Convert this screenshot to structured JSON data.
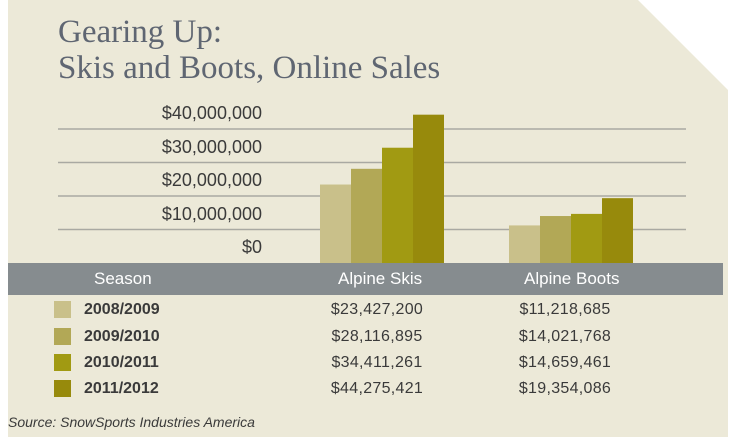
{
  "title_line1": "Gearing Up:",
  "title_line2": "Skis and Boots, Online Sales",
  "table": {
    "headers": [
      "Season",
      "Alpine Skis",
      "Alpine Boots"
    ]
  },
  "source": "Source: SnowSports Industries America",
  "colors": {
    "background": "#ece9d8",
    "gridline": "#a9a9a2",
    "header_band": "#868c8f",
    "series": [
      "#c9c08a",
      "#b2a856",
      "#a19a12",
      "#978a0c"
    ]
  },
  "chart_data": {
    "type": "bar",
    "categories": [
      "Alpine Skis",
      "Alpine Boots"
    ],
    "series": [
      {
        "name": "2008/2009",
        "values": [
          23427200,
          11218685
        ],
        "labels": [
          "$23,427,200",
          "$11,218,685"
        ]
      },
      {
        "name": "2009/2010",
        "values": [
          28116895,
          14021768
        ],
        "labels": [
          "$28,116,895",
          "$14,021,768"
        ]
      },
      {
        "name": "2010/2011",
        "values": [
          34411261,
          14659461
        ],
        "labels": [
          "$34,411,261",
          "$14,659,461"
        ]
      },
      {
        "name": "2011/2012",
        "values": [
          44275421,
          19354086
        ],
        "labels": [
          "$44,275,421",
          "$19,354,086"
        ]
      }
    ],
    "yticks": [
      0,
      10000000,
      20000000,
      30000000,
      40000000
    ],
    "ytick_labels": [
      "$0",
      "$10,000,000",
      "$20,000,000",
      "$30,000,000",
      "$40,000,000"
    ],
    "ylim": [
      0,
      40000000
    ],
    "grid": true,
    "legend": "table-left"
  }
}
